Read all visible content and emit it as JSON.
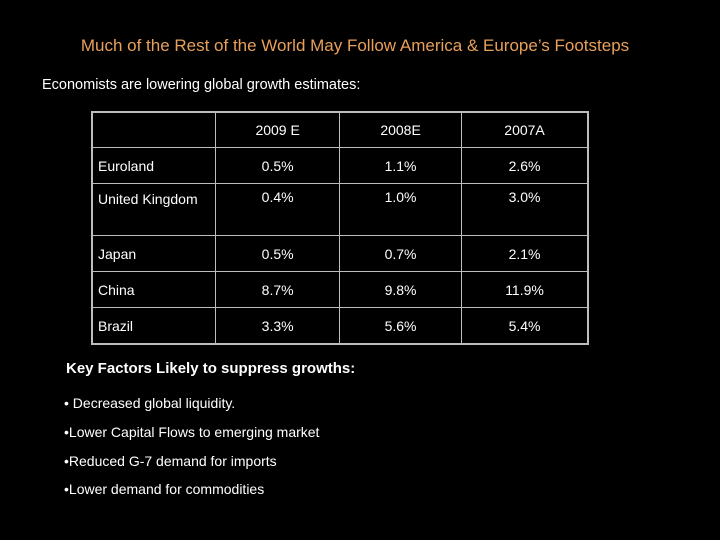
{
  "slide": {
    "title": "Much of the Rest of the World May Follow America & Europe’s Footsteps",
    "subtitle": "Economists are lowering global growth estimates:"
  },
  "table": {
    "corner": "",
    "headers": [
      "2009 E",
      "2008E",
      "2007A"
    ],
    "rows": [
      {
        "country": "Euroland",
        "values": [
          "0.5%",
          "1.1%",
          "2.6%"
        ]
      },
      {
        "country": "United Kingdom",
        "values": [
          "0.4%",
          "1.0%",
          "3.0%"
        ]
      },
      {
        "country": "Japan",
        "values": [
          "0.5%",
          "0.7%",
          "2.1%"
        ]
      },
      {
        "country": "China",
        "values": [
          "8.7%",
          "9.8%",
          "11.9%"
        ]
      },
      {
        "country": "Brazil",
        "values": [
          "3.3%",
          "5.6%",
          "5.4%"
        ]
      }
    ]
  },
  "factors": {
    "title": "Key Factors Likely to suppress growths:",
    "items": [
      "• Decreased global liquidity.",
      "•Lower Capital Flows to emerging market",
      "•Reduced G-7 demand for imports",
      "•Lower demand for commodities"
    ]
  },
  "colors": {
    "title": "#e8a05a",
    "background": "#000000",
    "text": "#ffffff",
    "table_border": "#bdbdbd"
  }
}
